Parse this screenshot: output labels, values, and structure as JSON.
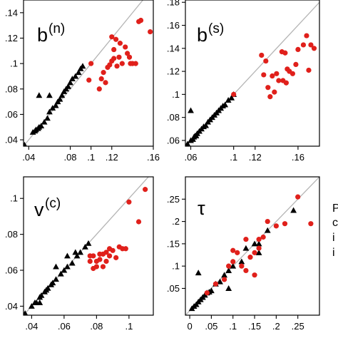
{
  "chart_data": [
    {
      "type": "scatter",
      "panel_label": "b",
      "panel_superscript": "(n)",
      "xlim": [
        0.035,
        0.16
      ],
      "ylim": [
        0.035,
        0.15
      ],
      "x_ticks": [
        ".04",
        ".08",
        ".1",
        ".12",
        ".16"
      ],
      "y_ticks": [
        ".04",
        ".06",
        ".08",
        ".1",
        ".12",
        ".14"
      ],
      "grid": false,
      "reference_line": "y = x",
      "series": [
        {
          "marker": "triangle",
          "color": "#000000",
          "x": [
            0.036,
            0.044,
            0.046,
            0.047,
            0.049,
            0.05,
            0.052,
            0.055,
            0.058,
            0.06,
            0.063,
            0.066,
            0.068,
            0.07,
            0.072,
            0.074,
            0.076,
            0.078,
            0.08,
            0.082,
            0.085,
            0.088,
            0.09,
            0.092,
            0.05,
            0.06
          ],
          "y": [
            0.036,
            0.046,
            0.047,
            0.048,
            0.049,
            0.05,
            0.051,
            0.054,
            0.057,
            0.062,
            0.065,
            0.067,
            0.07,
            0.072,
            0.075,
            0.078,
            0.08,
            0.082,
            0.085,
            0.088,
            0.09,
            0.093,
            0.096,
            0.098,
            0.075,
            0.075
          ]
        },
        {
          "marker": "circle",
          "color": "#e0201b",
          "x": [
            0.1,
            0.148,
            0.146,
            0.157,
            0.12,
            0.124,
            0.122,
            0.128,
            0.133,
            0.137,
            0.14,
            0.143,
            0.116,
            0.118,
            0.12,
            0.122,
            0.125,
            0.127,
            0.13,
            0.135,
            0.138,
            0.11,
            0.112,
            0.114,
            0.098,
            0.108
          ],
          "y": [
            0.1,
            0.134,
            0.133,
            0.125,
            0.121,
            0.119,
            0.111,
            0.116,
            0.113,
            0.105,
            0.1,
            0.1,
            0.097,
            0.099,
            0.102,
            0.104,
            0.098,
            0.105,
            0.1,
            0.108,
            0.1,
            0.088,
            0.093,
            0.085,
            0.087,
            0.08
          ]
        }
      ]
    },
    {
      "type": "scatter",
      "panel_label": "b",
      "panel_superscript": "(s)",
      "xlim": [
        0.055,
        0.18
      ],
      "ylim": [
        0.055,
        0.182
      ],
      "x_ticks": [
        ".06",
        ".1",
        ".12",
        ".16"
      ],
      "y_ticks": [
        ".06",
        ".08",
        ".1",
        ".12",
        ".14",
        ".16",
        ".18"
      ],
      "grid": false,
      "reference_line": "y = x",
      "series": [
        {
          "marker": "triangle",
          "color": "#000000",
          "x": [
            0.057,
            0.06,
            0.062,
            0.063,
            0.064,
            0.065,
            0.066,
            0.068,
            0.07,
            0.072,
            0.074,
            0.076,
            0.078,
            0.08,
            0.082,
            0.084,
            0.086,
            0.088,
            0.09,
            0.092,
            0.095,
            0.098,
            0.1,
            0.06
          ],
          "y": [
            0.057,
            0.06,
            0.061,
            0.063,
            0.064,
            0.064,
            0.066,
            0.068,
            0.07,
            0.072,
            0.073,
            0.076,
            0.078,
            0.08,
            0.082,
            0.084,
            0.086,
            0.088,
            0.09,
            0.091,
            0.095,
            0.097,
            0.1,
            0.086
          ]
        },
        {
          "marker": "circle",
          "color": "#e0201b",
          "x": [
            0.1,
            0.126,
            0.128,
            0.13,
            0.132,
            0.134,
            0.136,
            0.138,
            0.14,
            0.142,
            0.145,
            0.148,
            0.15,
            0.152,
            0.155,
            0.158,
            0.16,
            0.165,
            0.168,
            0.17,
            0.172,
            0.175,
            0.146,
            0.149
          ],
          "y": [
            0.1,
            0.134,
            0.117,
            0.129,
            0.106,
            0.098,
            0.116,
            0.102,
            0.118,
            0.112,
            0.137,
            0.136,
            0.122,
            0.12,
            0.118,
            0.126,
            0.139,
            0.143,
            0.151,
            0.121,
            0.143,
            0.14,
            0.112,
            0.11
          ]
        }
      ]
    },
    {
      "type": "scatter",
      "panel_label": "v",
      "panel_superscript": "(c)",
      "xlim": [
        0.035,
        0.115
      ],
      "ylim": [
        0.035,
        0.112
      ],
      "x_ticks": [
        ".04",
        ".06",
        ".08",
        ".1"
      ],
      "y_ticks": [
        ".04",
        ".06",
        ".08",
        ".1"
      ],
      "grid": false,
      "reference_line": "y = x",
      "series": [
        {
          "marker": "triangle",
          "color": "#000000",
          "x": [
            0.036,
            0.04,
            0.042,
            0.043,
            0.045,
            0.046,
            0.048,
            0.049,
            0.05,
            0.052,
            0.053,
            0.055,
            0.058,
            0.06,
            0.062,
            0.065,
            0.068,
            0.07,
            0.073,
            0.075,
            0.055,
            0.062,
            0.045,
            0.067
          ],
          "y": [
            0.036,
            0.04,
            0.042,
            0.042,
            0.045,
            0.046,
            0.048,
            0.049,
            0.05,
            0.052,
            0.053,
            0.055,
            0.058,
            0.06,
            0.062,
            0.064,
            0.068,
            0.07,
            0.073,
            0.075,
            0.062,
            0.068,
            0.042,
            0.07
          ]
        },
        {
          "marker": "circle",
          "color": "#e0201b",
          "x": [
            0.076,
            0.076,
            0.078,
            0.08,
            0.082,
            0.084,
            0.086,
            0.088,
            0.09,
            0.092,
            0.094,
            0.096,
            0.098,
            0.1,
            0.106,
            0.11,
            0.078,
            0.08,
            0.082,
            0.084,
            0.086,
            0.088
          ],
          "y": [
            0.065,
            0.068,
            0.068,
            0.065,
            0.069,
            0.062,
            0.07,
            0.072,
            0.071,
            0.067,
            0.073,
            0.072,
            0.072,
            0.098,
            0.087,
            0.105,
            0.061,
            0.062,
            0.066,
            0.069,
            0.065,
            0.068
          ]
        }
      ]
    },
    {
      "type": "scatter",
      "panel_label": "τ",
      "xlim": [
        -0.01,
        0.3
      ],
      "ylim": [
        -0.01,
        0.3
      ],
      "x_ticks": [
        "0",
        ".05",
        ".1",
        ".15",
        ".2",
        ".25"
      ],
      "y_ticks": [
        ".05",
        ".1",
        ".15",
        ".2",
        ".25"
      ],
      "grid": false,
      "reference_line": "y = x",
      "series": [
        {
          "marker": "triangle",
          "color": "#000000",
          "x": [
            0.005,
            0.01,
            0.015,
            0.02,
            0.025,
            0.03,
            0.035,
            0.04,
            0.045,
            0.05,
            0.06,
            0.07,
            0.08,
            0.09,
            0.1,
            0.12,
            0.13,
            0.15,
            0.16,
            0.18,
            0.24,
            0.02,
            0.03,
            0.16,
            0.09
          ],
          "y": [
            0.005,
            0.01,
            0.014,
            0.02,
            0.025,
            0.03,
            0.035,
            0.04,
            0.042,
            0.045,
            0.06,
            0.065,
            0.08,
            0.09,
            0.1,
            0.11,
            0.14,
            0.15,
            0.15,
            0.18,
            0.225,
            0.085,
            0.03,
            0.13,
            0.05
          ]
        },
        {
          "marker": "circle",
          "color": "#e0201b",
          "x": [
            0.04,
            0.06,
            0.08,
            0.09,
            0.1,
            0.11,
            0.12,
            0.13,
            0.14,
            0.15,
            0.16,
            0.17,
            0.18,
            0.2,
            0.22,
            0.25,
            0.28,
            0.1,
            0.13,
            0.16,
            0.15
          ],
          "y": [
            0.04,
            0.06,
            0.07,
            0.1,
            0.11,
            0.13,
            0.1,
            0.09,
            0.12,
            0.13,
            0.16,
            0.165,
            0.2,
            0.19,
            0.195,
            0.255,
            0.195,
            0.135,
            0.16,
            0.14,
            0.08
          ]
        }
      ]
    }
  ],
  "cut_text_right": [
    "P",
    "c",
    "i",
    "i"
  ]
}
